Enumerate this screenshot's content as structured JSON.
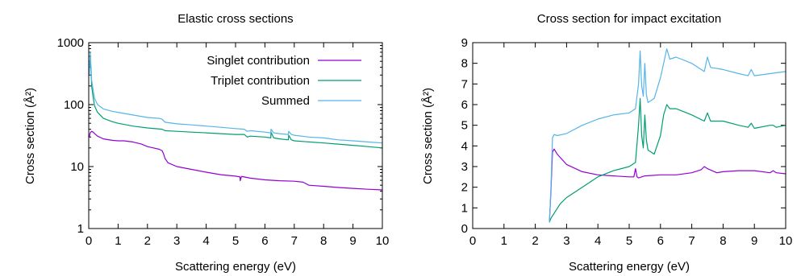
{
  "chart_data": [
    {
      "type": "line",
      "title": "Elastic cross sections",
      "xlabel": "Scattering energy (eV)",
      "ylabel": "Cross section (Å²)",
      "xlim": [
        0,
        10
      ],
      "ylim": [
        1,
        1000
      ],
      "yscale": "log",
      "grid": false,
      "legend_position": "top-right",
      "xticks": [
        "0",
        "1",
        "2",
        "3",
        "4",
        "5",
        "6",
        "7",
        "8",
        "9",
        "10"
      ],
      "yticks": [
        "1",
        "10",
        "100",
        "1000"
      ],
      "series": [
        {
          "name": "Singlet contribution",
          "color": "#9400d3",
          "x": [
            0.02,
            0.05,
            0.1,
            0.15,
            0.2,
            0.3,
            0.5,
            0.8,
            1.0,
            1.2,
            1.5,
            1.8,
            2.0,
            2.2,
            2.4,
            2.5,
            2.55,
            2.6,
            2.7,
            3.0,
            3.5,
            4.0,
            4.5,
            5.0,
            5.15,
            5.16,
            5.2,
            5.3,
            5.5,
            6.0,
            6.5,
            7.0,
            7.3,
            7.5,
            8.0,
            8.5,
            9.0,
            9.5,
            10.0
          ],
          "y": [
            30,
            35,
            37,
            36,
            34,
            31,
            28,
            26.5,
            26,
            26,
            25,
            23,
            21,
            20,
            19,
            18,
            16,
            13.5,
            11.5,
            10,
            9,
            8.1,
            7.4,
            7.0,
            6.8,
            5.9,
            6.9,
            6.8,
            6.5,
            6.1,
            5.9,
            5.8,
            5.6,
            5.0,
            4.8,
            4.6,
            4.45,
            4.3,
            4.2
          ]
        },
        {
          "name": "Triplet contribution",
          "color": "#009e73",
          "x": [
            0.03,
            0.05,
            0.08,
            0.1,
            0.15,
            0.2,
            0.3,
            0.5,
            0.8,
            1.0,
            1.5,
            2.0,
            2.5,
            2.6,
            3.0,
            3.5,
            4.0,
            4.5,
            5.0,
            5.3,
            5.4,
            5.5,
            6.0,
            6.2,
            6.21,
            6.3,
            6.5,
            6.8,
            6.81,
            6.9,
            7.0,
            7.5,
            8.0,
            8.5,
            9.0,
            9.5,
            10.0
          ],
          "y": [
            400,
            600,
            350,
            200,
            130,
            95,
            75,
            60,
            53,
            50,
            45,
            42,
            40,
            38,
            37,
            36,
            35,
            34,
            33,
            33,
            30,
            31,
            30,
            29,
            36,
            29,
            28,
            27,
            32,
            27,
            26,
            25,
            24,
            23,
            22,
            21,
            20
          ]
        },
        {
          "name": "Summed",
          "color": "#56b4e9",
          "x": [
            0.02,
            0.05,
            0.08,
            0.1,
            0.15,
            0.2,
            0.3,
            0.5,
            0.8,
            1.0,
            1.5,
            2.0,
            2.4,
            2.5,
            2.6,
            3.0,
            3.5,
            4.0,
            4.5,
            5.0,
            5.3,
            5.4,
            5.5,
            6.0,
            6.2,
            6.21,
            6.3,
            6.5,
            6.8,
            6.81,
            6.9,
            7.0,
            7.5,
            8.0,
            8.5,
            9.0,
            9.5,
            10.0
          ],
          "y": [
            300,
            700,
            400,
            250,
            170,
            125,
            100,
            85,
            78,
            75,
            68,
            62,
            60,
            58,
            52,
            49,
            47,
            45,
            43,
            41,
            40,
            37,
            38,
            36,
            35,
            40,
            35,
            34,
            33,
            37,
            33,
            32,
            30,
            29,
            27,
            26,
            25,
            24
          ]
        }
      ]
    },
    {
      "type": "line",
      "title": "Cross section for impact excitation",
      "xlabel": "Scattering energy (eV)",
      "ylabel": "Cross section (Å²)",
      "xlim": [
        0,
        10
      ],
      "ylim": [
        0,
        9
      ],
      "grid": false,
      "legend": false,
      "xticks": [
        "0",
        "1",
        "2",
        "3",
        "4",
        "5",
        "6",
        "7",
        "8",
        "9",
        "10"
      ],
      "yticks": [
        "0",
        "1",
        "2",
        "3",
        "4",
        "5",
        "6",
        "7",
        "8",
        "9"
      ],
      "series": [
        {
          "color": "#9400d3",
          "x": [
            2.45,
            2.5,
            2.55,
            2.6,
            2.7,
            3.0,
            3.5,
            4.0,
            4.5,
            5.0,
            5.15,
            5.2,
            5.25,
            5.3,
            5.5,
            6.0,
            6.5,
            7.0,
            7.3,
            7.4,
            7.5,
            7.8,
            8.0,
            8.5,
            9.0,
            9.5,
            9.6,
            9.7,
            10.0
          ],
          "y": [
            0.3,
            1.8,
            3.7,
            3.85,
            3.6,
            3.1,
            2.75,
            2.6,
            2.55,
            2.5,
            2.5,
            2.9,
            2.5,
            2.45,
            2.55,
            2.6,
            2.6,
            2.7,
            2.85,
            3.0,
            2.9,
            2.7,
            2.75,
            2.8,
            2.8,
            2.7,
            2.8,
            2.7,
            2.65
          ]
        },
        {
          "color": "#009e73",
          "x": [
            2.45,
            2.5,
            2.8,
            3.0,
            3.5,
            4.0,
            4.5,
            5.0,
            5.2,
            5.3,
            5.35,
            5.4,
            5.45,
            5.5,
            5.55,
            5.6,
            5.7,
            5.8,
            6.0,
            6.1,
            6.2,
            6.3,
            6.5,
            7.0,
            7.4,
            7.5,
            7.6,
            8.0,
            8.5,
            8.8,
            8.9,
            9.0,
            9.5,
            9.6,
            9.7,
            10.0
          ],
          "y": [
            0.3,
            0.5,
            1.2,
            1.5,
            2.0,
            2.5,
            2.8,
            3.0,
            3.2,
            5.0,
            6.3,
            4.5,
            3.9,
            5.5,
            4.3,
            3.8,
            3.7,
            3.6,
            4.5,
            5.5,
            6.0,
            5.8,
            5.8,
            5.5,
            5.2,
            5.6,
            5.2,
            5.2,
            5.0,
            4.9,
            5.1,
            4.85,
            5.0,
            5.0,
            4.9,
            5.0
          ]
        },
        {
          "color": "#56b4e9",
          "x": [
            2.45,
            2.5,
            2.55,
            2.6,
            2.7,
            3.0,
            3.5,
            4.0,
            4.5,
            5.0,
            5.2,
            5.3,
            5.35,
            5.4,
            5.45,
            5.5,
            5.55,
            5.6,
            5.7,
            5.8,
            6.0,
            6.1,
            6.2,
            6.3,
            6.5,
            7.0,
            7.4,
            7.5,
            7.6,
            8.0,
            8.5,
            8.8,
            8.9,
            9.0,
            9.5,
            10.0
          ],
          "y": [
            0.3,
            2.0,
            4.4,
            4.55,
            4.5,
            4.6,
            5.0,
            5.3,
            5.5,
            5.6,
            5.8,
            7.0,
            8.6,
            6.9,
            6.4,
            8.0,
            6.5,
            6.1,
            6.2,
            6.3,
            7.3,
            8.0,
            8.7,
            8.2,
            8.3,
            8.0,
            7.6,
            8.3,
            7.8,
            7.7,
            7.5,
            7.4,
            7.7,
            7.4,
            7.5,
            7.6
          ]
        }
      ]
    }
  ]
}
